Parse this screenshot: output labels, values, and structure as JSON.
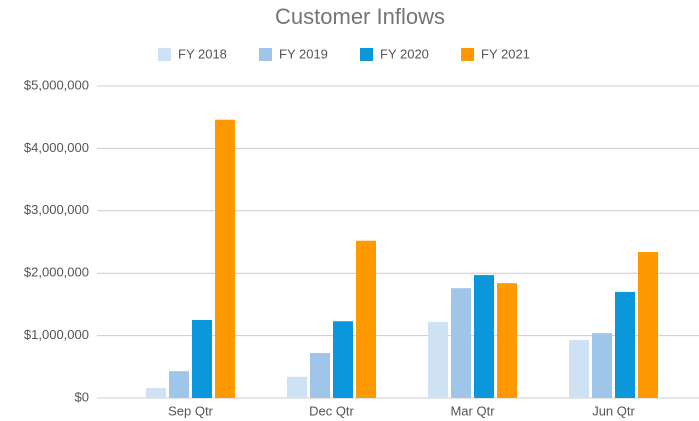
{
  "chart_data": {
    "type": "bar",
    "title": "Customer Inflows",
    "categories": [
      "Sep Qtr",
      "Dec Qtr",
      "Mar Qtr",
      "Jun Qtr"
    ],
    "series": [
      {
        "name": "FY 2018",
        "color": "#cfe2f3",
        "values": [
          160000,
          340000,
          1220000,
          930000
        ]
      },
      {
        "name": "FY 2019",
        "color": "#9fc5e8",
        "values": [
          430000,
          720000,
          1760000,
          1040000
        ]
      },
      {
        "name": "FY 2020",
        "color": "#0b97d9",
        "values": [
          1250000,
          1230000,
          1970000,
          1700000
        ]
      },
      {
        "name": "FY 2021",
        "color": "#ff9900",
        "values": [
          4460000,
          2520000,
          1840000,
          2340000
        ]
      }
    ],
    "ylim": [
      0,
      5000000
    ],
    "yticks": [
      {
        "value": 0,
        "label": "$0"
      },
      {
        "value": 1000000,
        "label": "$1,000,000"
      },
      {
        "value": 2000000,
        "label": "$2,000,000"
      },
      {
        "value": 3000000,
        "label": "$3,000,000"
      },
      {
        "value": 4000000,
        "label": "$4,000,000"
      },
      {
        "value": 5000000,
        "label": "$5,000,000"
      }
    ],
    "grid": true,
    "legend": "top"
  }
}
